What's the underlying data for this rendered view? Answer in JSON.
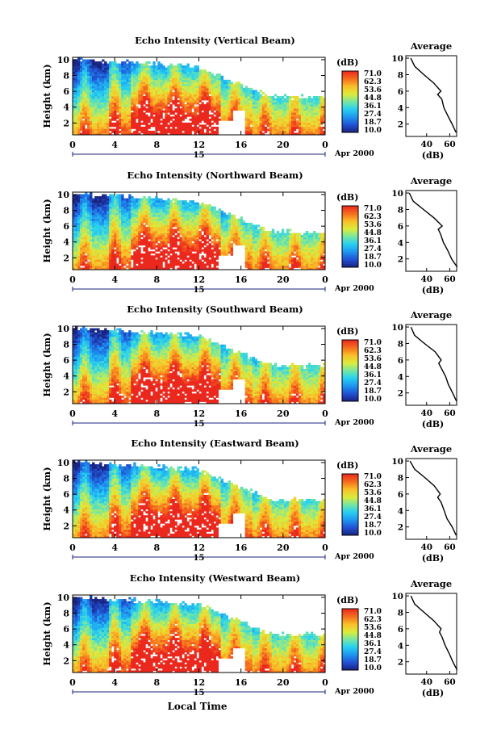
{
  "figure": {
    "date_label": "Apr 2000",
    "xlabel": "Local Time",
    "x_ticks": [
      "0",
      "4",
      "8",
      "12",
      "16",
      "20",
      "0"
    ],
    "day_label": "15"
  },
  "colorbar": {
    "unit": "(dB)",
    "ticks": [
      "71.0",
      "62.3",
      "53.6",
      "44.8",
      "36.1",
      "27.4",
      "18.7",
      "10.0"
    ],
    "range": [
      10.0,
      71.0
    ]
  },
  "panels": [
    {
      "title": "Echo Intensity (Vertical Beam)"
    },
    {
      "title": "Echo Intensity (Northward Beam)"
    },
    {
      "title": "Echo Intensity (Southward Beam)"
    },
    {
      "title": "Echo Intensity (Eastward Beam)"
    },
    {
      "title": "Echo Intensity (Westward Beam)"
    }
  ],
  "average_panel": {
    "title": "Average",
    "xlabel": "(dB)",
    "x_ticks": [
      "40",
      "60"
    ],
    "y_ticks": [
      "10",
      "8",
      "6",
      "4",
      "2"
    ]
  },
  "main_panel_axes": {
    "ylabel": "Height (km)",
    "y_ticks": [
      "10",
      "8",
      "6",
      "4",
      "2"
    ]
  },
  "chart_data": {
    "type": "heatmap",
    "x_axis": {
      "label": "Local Time",
      "range_hours": [
        0,
        24
      ],
      "ticks": [
        0,
        4,
        8,
        12,
        16,
        20,
        24
      ]
    },
    "y_axis": {
      "label": "Height (km)",
      "range_km": [
        0.5,
        10.3
      ],
      "ticks": [
        2,
        4,
        6,
        8,
        10
      ]
    },
    "value_range_db": [
      10.0,
      71.0
    ],
    "average_profiles": [
      {
        "beam": "Vertical",
        "height_km": [
          10,
          9,
          8,
          7,
          6,
          5.6,
          5,
          4,
          3,
          2,
          1
        ],
        "db": [
          26,
          30,
          38,
          46,
          52,
          50,
          53,
          55,
          58,
          62,
          66
        ]
      },
      {
        "beam": "Northward",
        "height_km": [
          10,
          9,
          8,
          7,
          6,
          5.6,
          5,
          4,
          3,
          2,
          1
        ],
        "db": [
          25,
          29,
          37,
          46,
          53,
          50,
          52,
          55,
          58,
          62,
          66
        ]
      },
      {
        "beam": "Southward",
        "height_km": [
          10,
          9,
          8,
          7,
          6,
          5.6,
          5,
          4,
          3,
          2,
          1
        ],
        "db": [
          26,
          30,
          38,
          47,
          53,
          51,
          53,
          56,
          59,
          63,
          66
        ]
      },
      {
        "beam": "Eastward",
        "height_km": [
          10,
          9,
          8,
          7,
          6,
          5.6,
          5,
          4,
          3,
          2,
          1
        ],
        "db": [
          26,
          30,
          38,
          46,
          52,
          50,
          52,
          55,
          58,
          62,
          66
        ]
      },
      {
        "beam": "Westward",
        "height_km": [
          10,
          9,
          8,
          7,
          6,
          5.6,
          5,
          4,
          3,
          2,
          1
        ],
        "db": [
          26,
          30,
          38,
          46,
          52,
          51,
          53,
          56,
          59,
          63,
          66
        ]
      }
    ]
  }
}
